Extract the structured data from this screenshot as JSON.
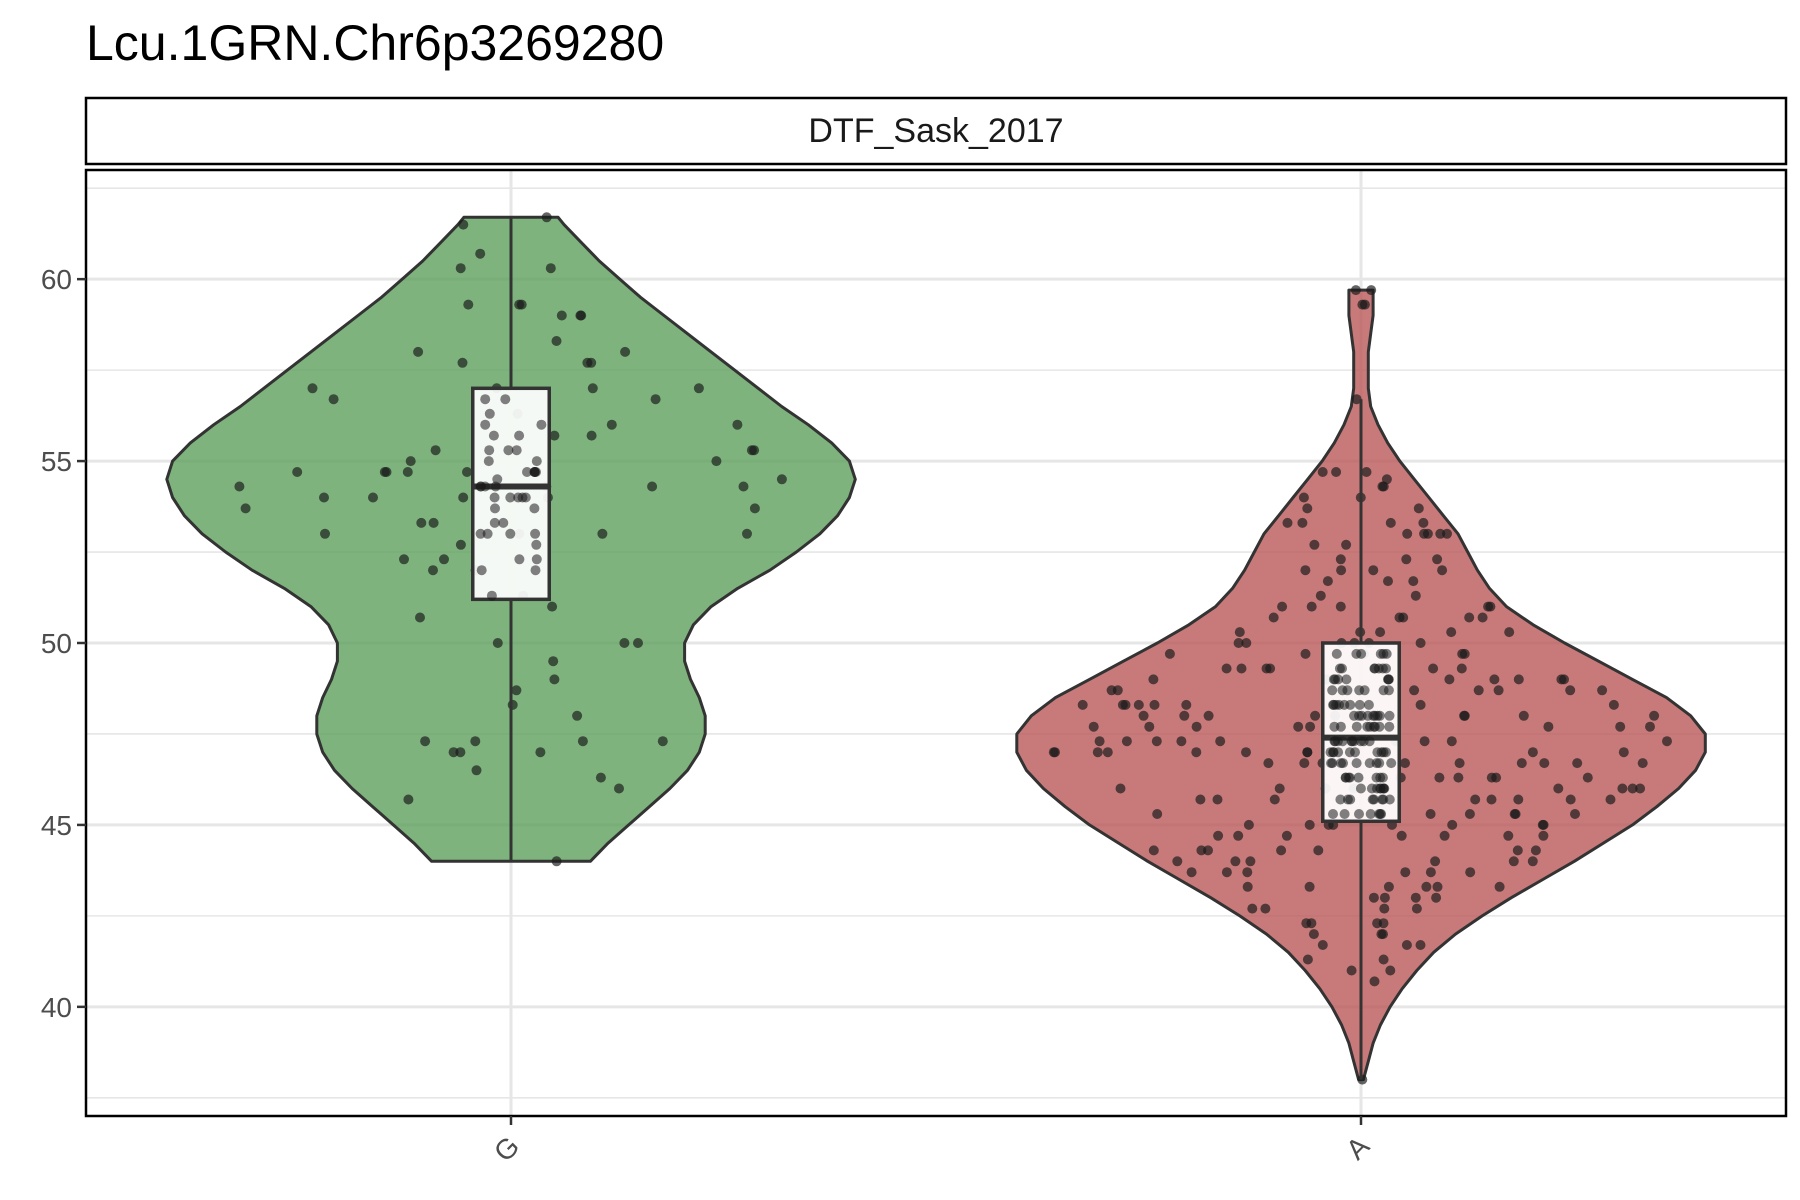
{
  "title": "Lcu.1GRN.Chr6p3269280",
  "chart_data": {
    "type": "violin",
    "facet": "DTF_Sask_2017",
    "categories": [
      "G",
      "A"
    ],
    "ylim": [
      37,
      63
    ],
    "y_ticks": [
      40,
      45,
      50,
      55,
      60
    ],
    "grid": true,
    "series": [
      {
        "category": "G",
        "color": "#5a9d5a",
        "box": {
          "q1": 51.2,
          "median": 54.3,
          "q3": 57.0,
          "whisker_low": 44.0,
          "whisker_high": 61.7
        },
        "violin_range": [
          44.0,
          61.7
        ],
        "density": [
          [
            44.0,
            0.27
          ],
          [
            44.5,
            0.33
          ],
          [
            45.0,
            0.4
          ],
          [
            45.5,
            0.47
          ],
          [
            46.0,
            0.54
          ],
          [
            46.5,
            0.6
          ],
          [
            47.0,
            0.64
          ],
          [
            47.5,
            0.66
          ],
          [
            48.0,
            0.66
          ],
          [
            48.5,
            0.64
          ],
          [
            49.0,
            0.61
          ],
          [
            49.5,
            0.59
          ],
          [
            50.0,
            0.59
          ],
          [
            50.5,
            0.62
          ],
          [
            51.0,
            0.68
          ],
          [
            51.5,
            0.77
          ],
          [
            52.0,
            0.88
          ],
          [
            52.5,
            0.97
          ],
          [
            53.0,
            1.05
          ],
          [
            53.5,
            1.11
          ],
          [
            54.0,
            1.15
          ],
          [
            54.5,
            1.17
          ],
          [
            55.0,
            1.15
          ],
          [
            55.5,
            1.09
          ],
          [
            56.0,
            1.01
          ],
          [
            56.5,
            0.92
          ],
          [
            57.0,
            0.84
          ],
          [
            57.5,
            0.76
          ],
          [
            58.0,
            0.68
          ],
          [
            58.5,
            0.6
          ],
          [
            59.0,
            0.52
          ],
          [
            59.5,
            0.44
          ],
          [
            60.0,
            0.37
          ],
          [
            60.5,
            0.3
          ],
          [
            61.0,
            0.24
          ],
          [
            61.5,
            0.18
          ],
          [
            61.7,
            0.16
          ]
        ],
        "points": [
          61.5,
          61.7,
          60.7,
          60.3,
          60.3,
          59.3,
          59.3,
          59.0,
          59.0,
          59.3,
          59.0,
          58.3,
          58.0,
          58.0,
          57.7,
          57.7,
          57.7,
          57.0,
          57.0,
          57.0,
          57.0,
          56.7,
          56.7,
          56.3,
          56.0,
          56.0,
          55.7,
          55.7,
          55.3,
          55.3,
          55.3,
          55.0,
          55.0,
          54.7,
          54.7,
          54.7,
          54.7,
          54.7,
          54.5,
          54.3,
          54.3,
          54.3,
          54.3,
          54.0,
          54.0,
          54.0,
          54.0,
          54.0,
          53.7,
          53.7,
          53.3,
          53.3,
          53.0,
          53.0,
          53.0,
          53.0,
          52.7,
          52.3,
          52.3,
          52.0,
          52.0,
          51.3,
          51.0,
          50.7,
          50.0,
          50.0,
          50.0,
          49.5,
          49.0,
          48.7,
          48.3,
          48.0,
          47.3,
          47.3,
          47.3,
          47.3,
          47.0,
          47.0,
          47.0,
          46.5,
          46.3,
          46.0,
          45.7,
          44.0
        ]
      },
      {
        "category": "A",
        "color": "#b85555",
        "box": {
          "q1": 45.1,
          "median": 47.4,
          "q3": 50.0,
          "whisker_low": 38.0,
          "whisker_high": 56.7
        },
        "violin_range": [
          38.0,
          59.7
        ],
        "density": [
          [
            38.0,
            0.01
          ],
          [
            38.5,
            0.03
          ],
          [
            39.0,
            0.05
          ],
          [
            39.5,
            0.08
          ],
          [
            40.0,
            0.12
          ],
          [
            40.5,
            0.17
          ],
          [
            41.0,
            0.23
          ],
          [
            41.5,
            0.3
          ],
          [
            42.0,
            0.39
          ],
          [
            42.5,
            0.5
          ],
          [
            43.0,
            0.62
          ],
          [
            43.5,
            0.75
          ],
          [
            44.0,
            0.88
          ],
          [
            44.5,
            1.0
          ],
          [
            45.0,
            1.12
          ],
          [
            45.5,
            1.22
          ],
          [
            46.0,
            1.31
          ],
          [
            46.5,
            1.38
          ],
          [
            47.0,
            1.42
          ],
          [
            47.5,
            1.42
          ],
          [
            48.0,
            1.36
          ],
          [
            48.5,
            1.26
          ],
          [
            49.0,
            1.12
          ],
          [
            49.5,
            0.98
          ],
          [
            50.0,
            0.84
          ],
          [
            50.5,
            0.71
          ],
          [
            51.0,
            0.6
          ],
          [
            51.5,
            0.53
          ],
          [
            52.0,
            0.48
          ],
          [
            52.5,
            0.44
          ],
          [
            53.0,
            0.4
          ],
          [
            53.5,
            0.34
          ],
          [
            54.0,
            0.28
          ],
          [
            54.5,
            0.22
          ],
          [
            55.0,
            0.16
          ],
          [
            55.5,
            0.11
          ],
          [
            56.0,
            0.07
          ],
          [
            56.5,
            0.04
          ],
          [
            57.0,
            0.03
          ],
          [
            57.5,
            0.03
          ],
          [
            58.0,
            0.03
          ],
          [
            58.5,
            0.04
          ],
          [
            59.0,
            0.05
          ],
          [
            59.5,
            0.05
          ],
          [
            59.7,
            0.05
          ]
        ],
        "points": [
          59.7,
          59.3,
          59.3,
          59.7,
          56.7,
          54.7,
          54.7,
          54.7,
          54.5,
          54.3,
          54.3,
          54.0,
          54.0,
          53.7,
          53.7,
          53.3,
          53.3,
          53.3,
          53.3,
          53.0,
          53.0,
          53.0,
          53.0,
          53.0,
          52.7,
          52.7,
          52.3,
          52.3,
          52.3,
          52.0,
          52.0,
          52.0,
          52.0,
          51.7,
          51.7,
          51.7,
          51.3,
          51.3,
          51.0,
          51.0,
          51.0,
          51.0,
          51.0,
          50.7,
          50.7,
          50.7,
          50.7,
          50.7,
          50.3,
          50.3,
          50.3,
          50.3,
          50.3,
          50.0,
          50.0,
          50.0,
          50.0,
          50.0,
          50.0,
          49.7,
          49.7,
          49.7,
          49.7,
          49.7,
          49.7,
          49.3,
          49.3,
          49.3,
          49.3,
          49.3,
          49.3,
          49.3,
          49.0,
          49.0,
          49.0,
          49.0,
          49.0,
          49.0,
          49.0,
          48.7,
          48.7,
          48.7,
          48.7,
          48.7,
          48.7,
          48.7,
          48.3,
          48.3,
          48.3,
          48.3,
          48.3,
          48.3,
          48.3,
          48.3,
          48.0,
          48.0,
          48.0,
          48.0,
          48.0,
          48.0,
          48.0,
          48.0,
          48.0,
          47.7,
          47.7,
          47.7,
          47.7,
          47.7,
          47.7,
          47.7,
          47.7,
          47.7,
          47.3,
          47.3,
          47.3,
          47.3,
          47.3,
          47.3,
          47.3,
          47.3,
          47.3,
          47.3,
          47.0,
          47.0,
          47.0,
          47.0,
          47.0,
          47.0,
          47.0,
          47.0,
          47.0,
          47.0,
          46.7,
          46.7,
          46.7,
          46.7,
          46.7,
          46.7,
          46.7,
          46.7,
          46.7,
          46.3,
          46.3,
          46.3,
          46.3,
          46.3,
          46.3,
          46.3,
          46.3,
          46.0,
          46.0,
          46.0,
          46.0,
          46.0,
          46.0,
          46.0,
          46.0,
          45.7,
          45.7,
          45.7,
          45.7,
          45.7,
          45.7,
          45.7,
          45.7,
          45.3,
          45.3,
          45.3,
          45.3,
          45.3,
          45.3,
          45.3,
          45.0,
          45.0,
          45.0,
          45.0,
          45.0,
          45.0,
          45.0,
          45.0,
          44.7,
          44.7,
          44.7,
          44.7,
          44.7,
          44.7,
          44.7,
          44.3,
          44.3,
          44.3,
          44.3,
          44.3,
          44.3,
          44.3,
          44.0,
          44.0,
          44.0,
          44.0,
          44.0,
          44.0,
          43.7,
          43.7,
          43.7,
          43.7,
          43.7,
          43.7,
          43.3,
          43.3,
          43.3,
          43.3,
          43.3,
          43.3,
          43.0,
          43.0,
          43.0,
          43.0,
          42.7,
          42.7,
          42.7,
          42.7,
          42.3,
          42.3,
          42.3,
          42.3,
          42.0,
          42.0,
          42.0,
          41.7,
          41.7,
          41.7,
          41.3,
          41.3,
          41.0,
          41.0,
          40.7,
          38.0
        ]
      }
    ]
  }
}
